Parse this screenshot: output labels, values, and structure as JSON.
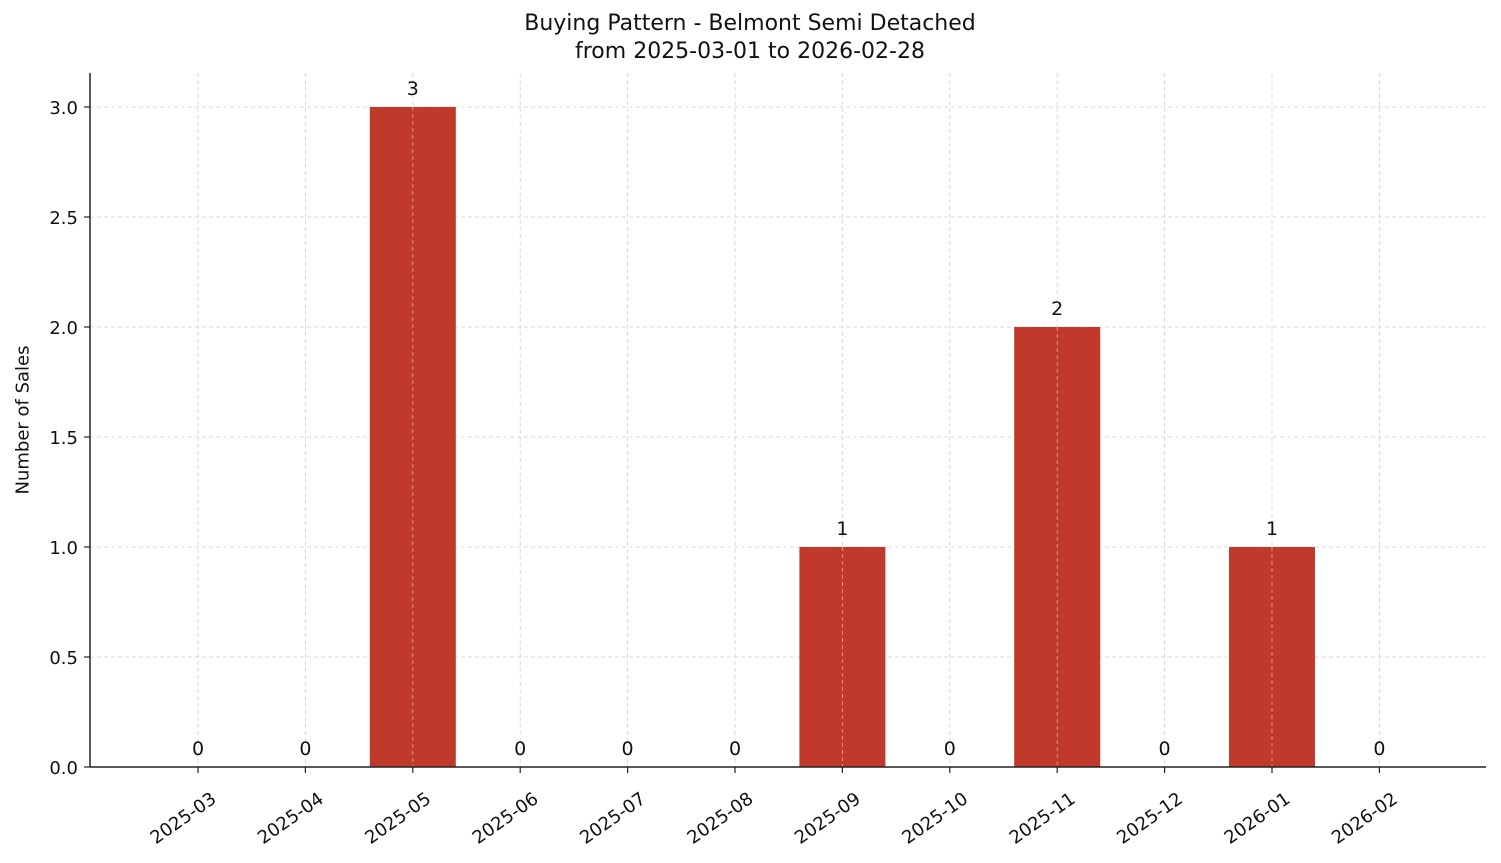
{
  "chart_data": {
    "type": "bar",
    "title": "Buying Pattern - Belmont Semi Detached",
    "subtitle": "from 2025-03-01 to 2026-02-28",
    "xlabel": "",
    "ylabel": "Number of Sales",
    "categories": [
      "2025-03",
      "2025-04",
      "2025-05",
      "2025-06",
      "2025-07",
      "2025-08",
      "2025-09",
      "2025-10",
      "2025-11",
      "2025-12",
      "2026-01",
      "2026-02"
    ],
    "values": [
      0,
      0,
      3,
      0,
      0,
      0,
      1,
      0,
      2,
      0,
      1,
      0
    ],
    "data_labels": [
      "0",
      "0",
      "3",
      "0",
      "0",
      "0",
      "1",
      "0",
      "2",
      "0",
      "1",
      "0"
    ],
    "ylim": [
      0,
      3.15
    ],
    "yticks": [
      0.0,
      0.5,
      1.0,
      1.5,
      2.0,
      2.5,
      3.0
    ],
    "ytick_labels": [
      "0.0",
      "0.5",
      "1.0",
      "1.5",
      "2.0",
      "2.5",
      "3.0"
    ],
    "grid": true,
    "grid_style": "dashed",
    "legend": null,
    "bar_color": "#c0392b",
    "xtick_rotation": 35
  }
}
